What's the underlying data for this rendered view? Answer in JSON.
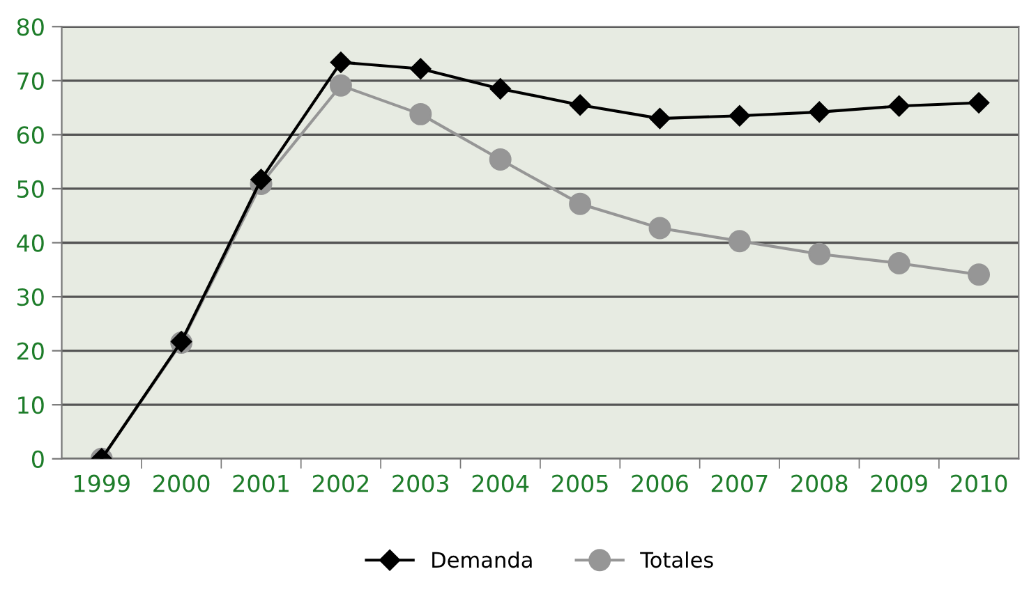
{
  "chart_data": {
    "type": "line",
    "categories": [
      "1999",
      "2000",
      "2001",
      "2002",
      "2003",
      "2004",
      "2005",
      "2006",
      "2007",
      "2008",
      "2009",
      "2010"
    ],
    "series": [
      {
        "name": "Totales",
        "color": "#969696",
        "marker": "circle",
        "values": [
          0,
          21.5,
          50.9,
          69.1,
          63.8,
          55.4,
          47.2,
          42.7,
          40.3,
          37.9,
          36.2,
          34.1
        ]
      },
      {
        "name": "Demanda",
        "color": "#000000",
        "marker": "diamond",
        "values": [
          0,
          21.7,
          51.7,
          73.4,
          72.2,
          68.5,
          65.5,
          63.0,
          63.5,
          64.2,
          65.3,
          65.9
        ]
      }
    ],
    "ylim": [
      0,
      80
    ],
    "yticks": [
      0,
      10,
      20,
      30,
      40,
      50,
      60,
      70,
      80
    ],
    "grid": "y",
    "legend": "bottom",
    "line_style": "solid"
  }
}
